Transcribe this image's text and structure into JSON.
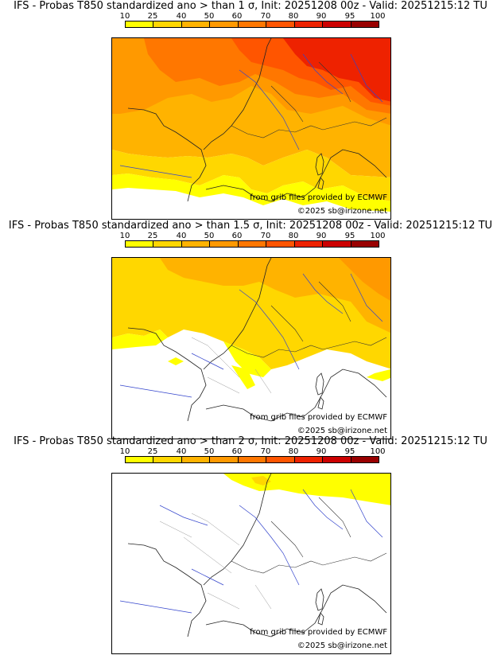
{
  "legend": {
    "ticks": [
      "10",
      "25",
      "40",
      "50",
      "60",
      "70",
      "80",
      "90",
      "95",
      "100"
    ],
    "colors": [
      "#ffff00",
      "#ffd700",
      "#ffb300",
      "#ff9900",
      "#ff7700",
      "#ff5500",
      "#ee2200",
      "#cc0000",
      "#990000",
      "#660000"
    ]
  },
  "credits": {
    "source": "from grib files provided by ECMWF",
    "copyright": "©2025 sb@irizone.net"
  },
  "panels": [
    {
      "title": "IFS - Probas T850  standardized ano > than 1 σ, Init: 20251208 00z - Valid: 20251215:12 TU"
    },
    {
      "title": "IFS - Probas T850  standardized ano > than 1.5 σ, Init: 20251208 00z - Valid: 20251215:12 TU"
    },
    {
      "title": "IFS - Probas T850  standardized ano > than 2 σ, Init: 20251208 00z - Valid: 20251215:12 TU"
    }
  ]
}
